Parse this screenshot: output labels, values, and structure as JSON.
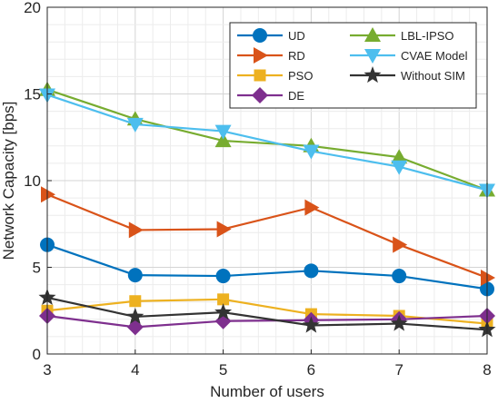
{
  "chart_data": {
    "type": "line",
    "x": [
      3,
      4,
      5,
      6,
      7,
      8
    ],
    "xlabel": "Number of users",
    "ylabel": "Network Capacity [bps]",
    "xlim": [
      3,
      8
    ],
    "ylim": [
      0,
      20
    ],
    "xticks": [
      3,
      4,
      5,
      6,
      7,
      8
    ],
    "yticks": [
      0,
      5,
      10,
      15,
      20
    ],
    "grid": true,
    "minor_grid": true,
    "legend_position": "top-right",
    "series": [
      {
        "name": "UD",
        "color": "#0072BD",
        "marker": "circle",
        "values": [
          6.3,
          4.55,
          4.5,
          4.8,
          4.5,
          3.75
        ]
      },
      {
        "name": "RD",
        "color": "#D95319",
        "marker": "triangle-right",
        "values": [
          9.2,
          7.15,
          7.2,
          8.45,
          6.3,
          4.4
        ]
      },
      {
        "name": "PSO",
        "color": "#EDB120",
        "marker": "square",
        "values": [
          2.5,
          3.05,
          3.15,
          2.3,
          2.2,
          1.75
        ]
      },
      {
        "name": "DE",
        "color": "#7E2F8E",
        "marker": "diamond",
        "values": [
          2.2,
          1.55,
          1.9,
          1.95,
          2.0,
          2.2
        ]
      },
      {
        "name": "LBL-IPSO",
        "color": "#77AC30",
        "marker": "triangle-up",
        "values": [
          15.25,
          13.55,
          12.3,
          12.0,
          11.35,
          9.45
        ]
      },
      {
        "name": "CVAE Model",
        "color": "#4DBEEE",
        "marker": "triangle-down",
        "values": [
          14.95,
          13.25,
          12.85,
          11.7,
          10.8,
          9.45
        ]
      },
      {
        "name": "Without SIM",
        "color": "#333333",
        "marker": "star",
        "values": [
          3.25,
          2.15,
          2.4,
          1.65,
          1.75,
          1.4
        ]
      }
    ]
  }
}
